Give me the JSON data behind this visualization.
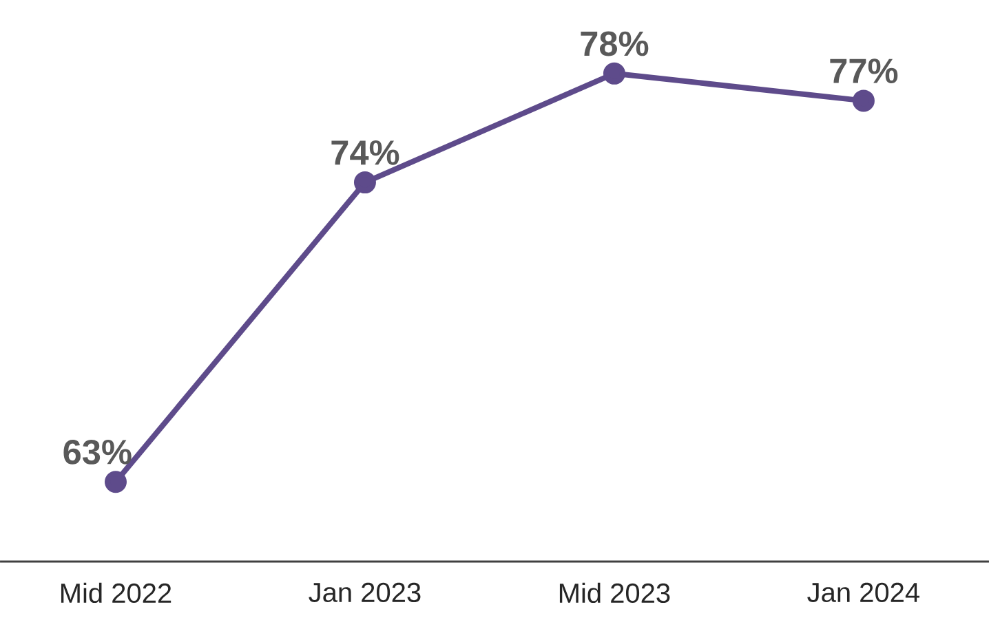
{
  "chart_data": {
    "type": "line",
    "categories": [
      "Mid 2022",
      "Jan 2023",
      "Mid 2023",
      "Jan 2024"
    ],
    "series": [
      {
        "color": "#5e4b8b",
        "values": [
          63,
          74,
          78,
          77
        ],
        "value_labels": [
          "63%",
          "74%",
          "78%",
          "77%"
        ]
      }
    ],
    "marker": "circle",
    "line_style": "solid"
  }
}
